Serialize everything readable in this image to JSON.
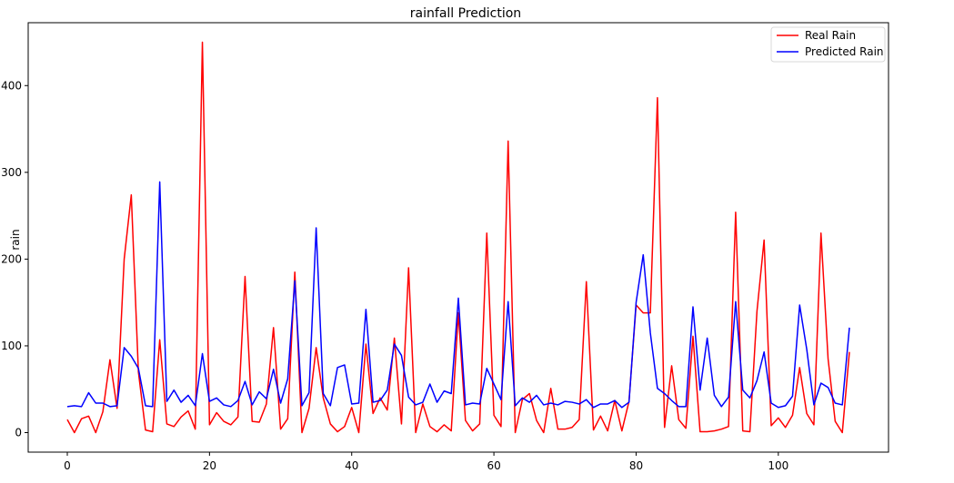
{
  "chart_data": {
    "type": "line",
    "title": "rainfall Prediction",
    "xlabel": "",
    "ylabel": "rain",
    "xlim": [
      -5.5,
      115.5
    ],
    "ylim": [
      -22.5,
      472.5
    ],
    "xticks": [
      0,
      20,
      40,
      60,
      80,
      100
    ],
    "yticks": [
      0,
      100,
      200,
      300,
      400
    ],
    "grid": false,
    "legend_position": "top-right",
    "series": [
      {
        "name": "Real Rain",
        "color": "#ff0000",
        "values": [
          15,
          0,
          16,
          19,
          0,
          24,
          84,
          28,
          200,
          274,
          70,
          3,
          1,
          107,
          10,
          7,
          18,
          25,
          4,
          450,
          9,
          23,
          13,
          9,
          18,
          180,
          13,
          12,
          33,
          121,
          4,
          16,
          185,
          0,
          28,
          98,
          40,
          10,
          1,
          7,
          29,
          0,
          102,
          22,
          40,
          26,
          109,
          10,
          190,
          0,
          33,
          7,
          1,
          9,
          2,
          138,
          14,
          2,
          10,
          230,
          20,
          7,
          336,
          0,
          38,
          45,
          14,
          0,
          51,
          4,
          4,
          6,
          15,
          174,
          3,
          19,
          2,
          37,
          2,
          36,
          147,
          138,
          138,
          386,
          6,
          77,
          15,
          5,
          111,
          1,
          1,
          2,
          4,
          7,
          254,
          2,
          1,
          140,
          222,
          8,
          17,
          6,
          20,
          75,
          22,
          9,
          230,
          85,
          13,
          0,
          93
        ]
      },
      {
        "name": "Predicted Rain",
        "color": "#0000ff",
        "values": [
          30,
          31,
          30,
          46,
          34,
          34,
          30,
          31,
          98,
          88,
          74,
          31,
          30,
          289,
          36,
          49,
          35,
          43,
          31,
          91,
          36,
          40,
          32,
          30,
          37,
          59,
          32,
          47,
          39,
          73,
          34,
          62,
          175,
          31,
          46,
          236,
          45,
          31,
          75,
          78,
          33,
          34,
          142,
          35,
          37,
          49,
          102,
          89,
          41,
          32,
          35,
          56,
          35,
          48,
          45,
          155,
          32,
          34,
          33,
          74,
          56,
          38,
          151,
          31,
          40,
          35,
          43,
          32,
          34,
          32,
          36,
          35,
          33,
          38,
          29,
          33,
          33,
          37,
          29,
          35,
          150,
          205,
          115,
          51,
          45,
          37,
          30,
          30,
          145,
          49,
          109,
          43,
          30,
          41,
          151,
          49,
          40,
          60,
          93,
          34,
          29,
          31,
          42,
          147,
          96,
          32,
          57,
          52,
          34,
          32,
          121
        ]
      }
    ]
  }
}
